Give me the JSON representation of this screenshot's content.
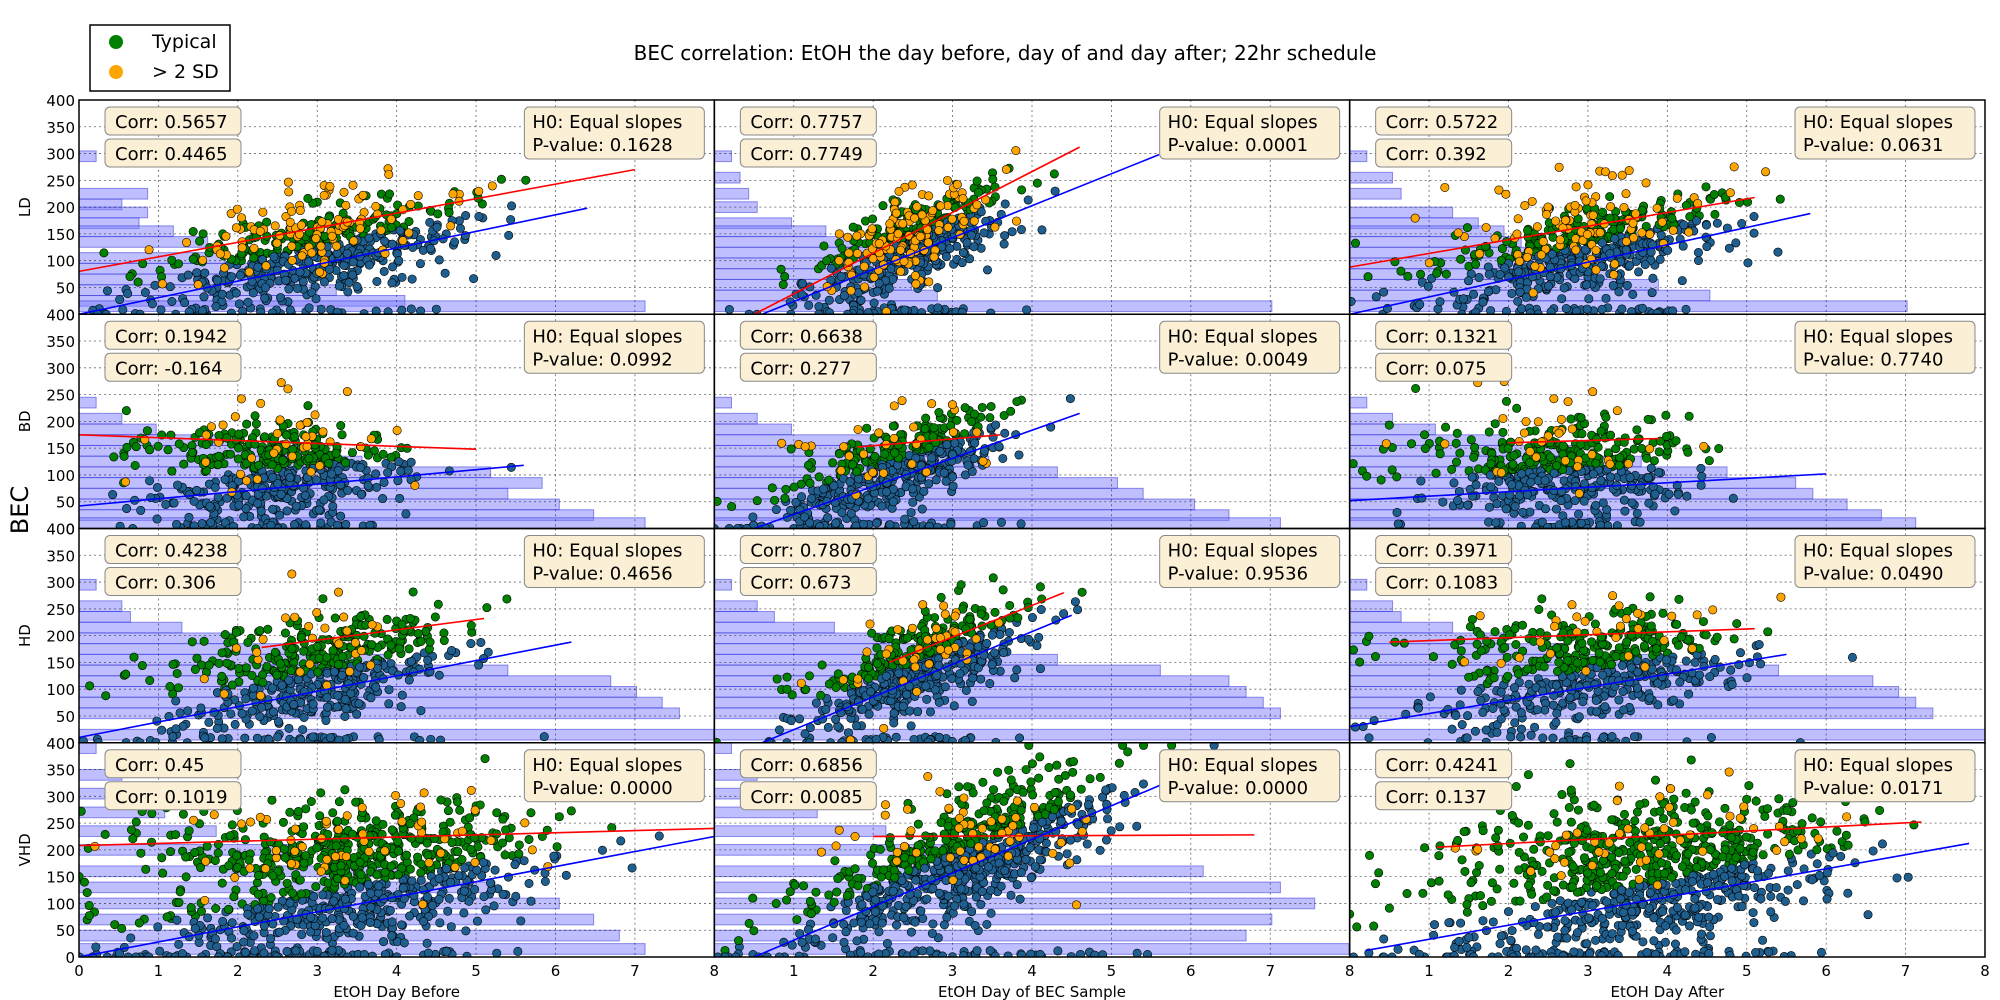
{
  "figure": {
    "title": "BEC correlation: EtOH the day before, day of and day after; 22hr schedule",
    "ylabel": "BEC",
    "legend": {
      "placement": "top-left",
      "entries": [
        {
          "label": "Typical",
          "color": "#008000"
        },
        {
          "label": "> 2 SD",
          "color": "#ffa500"
        }
      ]
    },
    "colors": {
      "typical": "#008000",
      "outlier": "#ffa500",
      "histogram": "#8080ff",
      "low_points": "#1f5f8f",
      "fit_high": "#ff0000",
      "fit_low": "#0000ff",
      "annotation_bg": "#fbefd5"
    }
  },
  "chart_data": {
    "type": "scatter",
    "grid": true,
    "columns": [
      {
        "xlabel": "EtOH Day Before"
      },
      {
        "xlabel": "EtOH Day of BEC Sample"
      },
      {
        "xlabel": "EtOH Day After"
      }
    ],
    "rows": [
      {
        "ylabel": "LD"
      },
      {
        "ylabel": "BD"
      },
      {
        "ylabel": "HD"
      },
      {
        "ylabel": "VHD"
      }
    ],
    "x_ticks": [
      "0",
      "1",
      "2",
      "3",
      "4",
      "5",
      "6",
      "7",
      "8"
    ],
    "y_ticks": [
      "0",
      "50",
      "100",
      "150",
      "200",
      "250",
      "300",
      "350",
      "400"
    ],
    "xlim": [
      0,
      8
    ],
    "ylim": [
      0,
      400
    ],
    "panels": [
      {
        "row": 0,
        "col": 0,
        "corr_high": "Corr: 0.5657",
        "corr_low": "Corr: 0.4465",
        "h0": "H0: Equal slopes",
        "p_value": "P-value: 0.1628",
        "fit_high": {
          "x": [
            0,
            7
          ],
          "y": [
            80,
            270
          ]
        },
        "fit_low": {
          "x": [
            0,
            6.4
          ],
          "y": [
            0,
            198
          ]
        },
        "hist": [
          20,
          285,
          80,
          215,
          50,
          195,
          80,
          180,
          70,
          160,
          110,
          145,
          150,
          125,
          170,
          95,
          210,
          75,
          260,
          55,
          300,
          35,
          380,
          15,
          660,
          5
        ],
        "cloud_x": [
          3.0,
          0.9
        ],
        "cloud_y": [
          110,
          45
        ],
        "n_typ": 520,
        "n_out": 110
      },
      {
        "row": 0,
        "col": 1,
        "corr_high": "Corr: 0.7757",
        "corr_low": "Corr: 0.7749",
        "h0": "H0: Equal slopes",
        "p_value": "P-value: 0.0001",
        "fit_high": {
          "x": [
            0.5,
            4.6
          ],
          "y": [
            0,
            312
          ]
        },
        "fit_low": {
          "x": [
            0.6,
            5.6
          ],
          "y": [
            0,
            298
          ]
        },
        "hist": [
          20,
          285,
          30,
          245,
          40,
          215,
          50,
          190,
          90,
          160,
          130,
          145,
          170,
          125,
          180,
          105,
          200,
          85,
          210,
          65,
          230,
          45,
          260,
          25,
          650,
          5
        ],
        "cloud_x": [
          2.5,
          0.6
        ],
        "cloud_y": [
          130,
          50
        ],
        "n_typ": 480,
        "n_out": 120,
        "corr": true
      },
      {
        "row": 0,
        "col": 2,
        "corr_high": "Corr: 0.5722",
        "corr_low": "Corr: 0.392",
        "h0": "H0: Equal slopes",
        "p_value": "P-value: 0.0631",
        "fit_high": {
          "x": [
            0,
            5.1
          ],
          "y": [
            88,
            218
          ]
        },
        "fit_low": {
          "x": [
            0,
            5.8
          ],
          "y": [
            0,
            188
          ]
        },
        "hist": [
          20,
          285,
          50,
          245,
          60,
          215,
          120,
          180,
          150,
          160,
          180,
          145,
          200,
          125,
          230,
          105,
          260,
          85,
          300,
          65,
          360,
          45,
          420,
          25,
          650,
          5
        ],
        "cloud_x": [
          3.0,
          0.9
        ],
        "cloud_y": [
          110,
          45
        ],
        "n_typ": 500,
        "n_out": 100
      },
      {
        "row": 1,
        "col": 0,
        "corr_high": "Corr: 0.1942",
        "corr_low": "Corr: -0.164",
        "h0": "H0: Equal slopes",
        "p_value": "P-value: 0.0992",
        "fit_high": {
          "x": [
            0,
            5
          ],
          "y": [
            175,
            148
          ]
        },
        "fit_low": {
          "x": [
            0,
            5.6
          ],
          "y": [
            42,
            118
          ]
        },
        "hist": [
          20,
          225,
          50,
          195,
          90,
          175,
          180,
          155,
          260,
          135,
          330,
          115,
          480,
          95,
          540,
          75,
          500,
          55,
          560,
          35,
          600,
          15,
          660,
          0
        ],
        "cloud_x": [
          2.6,
          0.8
        ],
        "cloud_y": [
          80,
          45
        ],
        "n_typ": 520,
        "n_out": 40
      },
      {
        "row": 1,
        "col": 1,
        "corr_high": "Corr: 0.6638",
        "corr_low": "Corr: 0.277",
        "h0": "H0: Equal slopes",
        "p_value": "P-value: 0.0049",
        "fit_high": {
          "x": [
            1.8,
            3.6
          ],
          "y": [
            152,
            175
          ]
        },
        "fit_low": {
          "x": [
            0.5,
            4.6
          ],
          "y": [
            0,
            215
          ]
        },
        "hist": [
          20,
          225,
          50,
          195,
          90,
          175,
          200,
          155,
          280,
          135,
          320,
          115,
          400,
          95,
          470,
          75,
          500,
          55,
          560,
          35,
          600,
          15,
          660,
          0
        ],
        "cloud_x": [
          2.3,
          0.7
        ],
        "cloud_y": [
          80,
          45
        ],
        "n_typ": 500,
        "n_out": 30,
        "corr": true
      },
      {
        "row": 1,
        "col": 2,
        "corr_high": "Corr: 0.1321",
        "corr_low": "Corr: 0.075",
        "h0": "H0: Equal slopes",
        "p_value": "P-value: 0.7740",
        "fit_high": {
          "x": [
            2.0,
            3.9
          ],
          "y": [
            160,
            168
          ]
        },
        "fit_low": {
          "x": [
            0,
            6
          ],
          "y": [
            52,
            102
          ]
        },
        "hist": [
          20,
          225,
          50,
          195,
          100,
          175,
          180,
          155,
          260,
          135,
          340,
          115,
          440,
          95,
          520,
          75,
          540,
          55,
          580,
          35,
          620,
          15,
          660,
          0
        ],
        "cloud_x": [
          2.7,
          0.8
        ],
        "cloud_y": [
          80,
          45
        ],
        "n_typ": 480,
        "n_out": 35
      },
      {
        "row": 2,
        "col": 0,
        "corr_high": "Corr: 0.4238",
        "corr_low": "Corr: 0.306",
        "h0": "H0: Equal slopes",
        "p_value": "P-value: 0.4656",
        "fit_high": {
          "x": [
            2.3,
            5.1
          ],
          "y": [
            178,
            232
          ]
        },
        "fit_low": {
          "x": [
            0,
            6.2
          ],
          "y": [
            10,
            188
          ]
        },
        "hist": [
          20,
          285,
          50,
          245,
          60,
          225,
          120,
          205,
          180,
          185,
          250,
          165,
          360,
          145,
          500,
          125,
          620,
          105,
          650,
          85,
          680,
          65,
          700,
          45,
          740,
          5
        ],
        "cloud_x": [
          3.0,
          0.9
        ],
        "cloud_y": [
          105,
          45
        ],
        "n_typ": 560,
        "n_out": 30
      },
      {
        "row": 2,
        "col": 1,
        "corr_high": "Corr: 0.7807",
        "corr_low": "Corr: 0.673",
        "h0": "H0: Equal slopes",
        "p_value": "P-value: 0.9536",
        "fit_high": {
          "x": [
            2.2,
            4.4
          ],
          "y": [
            150,
            280
          ]
        },
        "fit_low": {
          "x": [
            0.6,
            4.5
          ],
          "y": [
            0,
            238
          ]
        },
        "hist": [
          20,
          285,
          50,
          245,
          70,
          225,
          140,
          205,
          200,
          185,
          280,
          165,
          400,
          145,
          520,
          125,
          600,
          105,
          620,
          85,
          640,
          65,
          660,
          45,
          740,
          5
        ],
        "cloud_x": [
          2.6,
          0.7
        ],
        "cloud_y": [
          110,
          50
        ],
        "n_typ": 520,
        "n_out": 40,
        "corr": true
      },
      {
        "row": 2,
        "col": 2,
        "corr_high": "Corr: 0.3971",
        "corr_low": "Corr: 0.1083",
        "h0": "H0: Equal slopes",
        "p_value": "P-value: 0.0490",
        "fit_high": {
          "x": [
            0.5,
            5.1
          ],
          "y": [
            188,
            213
          ]
        },
        "fit_low": {
          "x": [
            0,
            5.5
          ],
          "y": [
            30,
            165
          ]
        },
        "hist": [
          20,
          285,
          50,
          245,
          60,
          225,
          120,
          205,
          180,
          185,
          250,
          165,
          360,
          145,
          500,
          125,
          610,
          105,
          640,
          85,
          660,
          65,
          680,
          45,
          760,
          5
        ],
        "cloud_x": [
          3.0,
          0.9
        ],
        "cloud_y": [
          105,
          45
        ],
        "n_typ": 520,
        "n_out": 30
      },
      {
        "row": 3,
        "col": 0,
        "corr_high": "Corr: 0.45",
        "corr_low": "Corr: 0.1019",
        "h0": "H0: Equal slopes",
        "p_value": "P-value: 0.0000",
        "fit_high": {
          "x": [
            0,
            8
          ],
          "y": [
            208,
            240
          ]
        },
        "fit_low": {
          "x": [
            0,
            8
          ],
          "y": [
            0,
            225
          ]
        },
        "hist": [
          20,
          380,
          50,
          330,
          60,
          295,
          100,
          260,
          160,
          225,
          250,
          190,
          380,
          150,
          480,
          120,
          560,
          90,
          600,
          60,
          630,
          30,
          660,
          5
        ],
        "cloud_x": [
          3.5,
          1.2
        ],
        "cloud_y": [
          150,
          70
        ],
        "n_typ": 900,
        "n_out": 60
      },
      {
        "row": 3,
        "col": 1,
        "corr_high": "Corr: 0.6856",
        "corr_low": "Corr: 0.0085",
        "h0": "H0: Equal slopes",
        "p_value": "P-value: 0.0000",
        "fit_high": {
          "x": [
            2.0,
            6.8
          ],
          "y": [
            225,
            228
          ]
        },
        "fit_low": {
          "x": [
            0.5,
            6
          ],
          "y": [
            0,
            345
          ]
        },
        "hist": [
          20,
          380,
          50,
          330,
          60,
          295,
          120,
          260,
          200,
          225,
          350,
          190,
          570,
          150,
          660,
          120,
          700,
          90,
          650,
          60,
          620,
          30,
          740,
          5
        ],
        "cloud_x": [
          3.2,
          0.9
        ],
        "cloud_y": [
          150,
          70
        ],
        "n_typ": 800,
        "n_out": 50,
        "corr": true
      },
      {
        "row": 3,
        "col": 2,
        "corr_high": "Corr: 0.4241",
        "corr_low": "Corr: 0.137",
        "h0": "H0: Equal slopes",
        "p_value": "P-value: 0.0171",
        "fit_high": {
          "x": [
            1.1,
            7.2
          ],
          "y": [
            205,
            252
          ]
        },
        "fit_low": {
          "x": [
            0.2,
            7.8
          ],
          "y": [
            12,
            212
          ]
        },
        "hist": [],
        "cloud_x": [
          3.8,
          1.2
        ],
        "cloud_y": [
          140,
          70
        ],
        "n_typ": 900,
        "n_out": 50
      }
    ]
  }
}
